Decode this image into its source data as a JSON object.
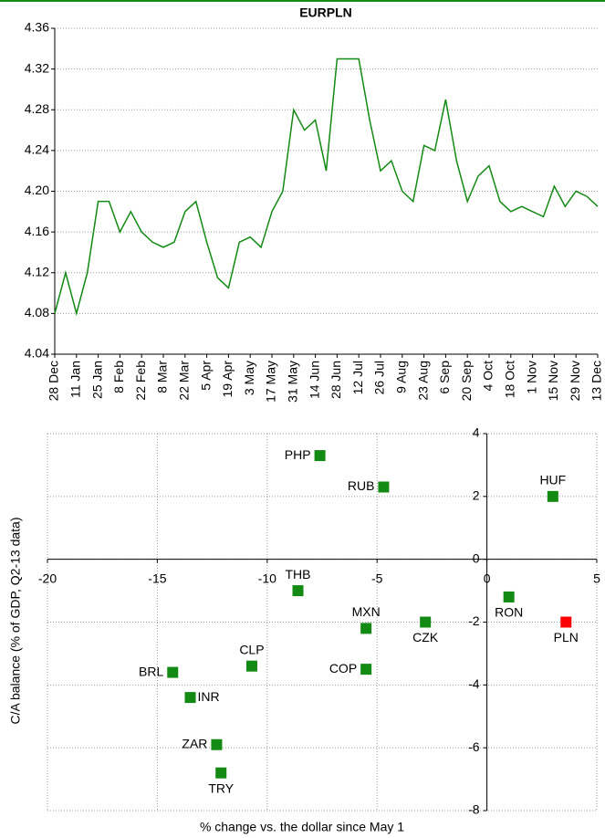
{
  "chart_data": [
    {
      "type": "line",
      "title": "EURPLN",
      "categories": [
        "28 Dec",
        null,
        "11 Jan",
        null,
        "25 Jan",
        null,
        "8 Feb",
        null,
        "22 Feb",
        null,
        "8 Mar",
        null,
        "22 Mar",
        null,
        "5 Apr",
        null,
        "19 Apr",
        null,
        "3 May",
        null,
        "17 May",
        null,
        "31 May",
        null,
        "14 Jun",
        null,
        "28 Jun",
        null,
        "12 Jul",
        null,
        "26 Jul",
        null,
        "9 Aug",
        null,
        "23 Aug",
        null,
        "6 Sep",
        null,
        "20 Sep",
        null,
        "4 Oct",
        null,
        "18 Oct",
        null,
        "1 Nov",
        null,
        "15 Nov",
        null,
        "29 Nov",
        null,
        "13 Dec"
      ],
      "series": [
        {
          "name": "EURPLN",
          "color": "#138a13",
          "values": [
            4.08,
            4.12,
            4.08,
            4.12,
            4.19,
            4.19,
            4.16,
            4.18,
            4.16,
            4.15,
            4.145,
            4.15,
            4.18,
            4.19,
            4.15,
            4.115,
            4.105,
            4.15,
            4.155,
            4.145,
            4.18,
            4.2,
            4.28,
            4.26,
            4.27,
            4.22,
            4.33,
            4.33,
            4.33,
            4.27,
            4.22,
            4.23,
            4.2,
            4.19,
            4.245,
            4.24,
            4.29,
            4.23,
            4.19,
            4.215,
            4.225,
            4.19,
            4.18,
            4.185,
            4.18,
            4.175,
            4.205,
            4.185,
            4.2,
            4.195,
            4.185
          ]
        }
      ],
      "ylim": [
        4.04,
        4.36
      ],
      "yticks": [
        4.04,
        4.08,
        4.12,
        4.16,
        {
          "value": 4.2,
          "label": "4.20"
        },
        4.24,
        4.28,
        4.32,
        4.36
      ],
      "grid": true
    },
    {
      "type": "scatter",
      "xlabel": "% change vs. the dollar since May 1",
      "ylabel": "C/A balance (% of GDP, Q2-13 data)",
      "labels": [
        "PHP",
        "RUB",
        "HUF",
        "THB",
        "RON",
        "MXN",
        "CZK",
        "PLN",
        "CLP",
        "COP",
        "BRL",
        "INR",
        "ZAR",
        "TRY"
      ],
      "x": [
        -7.6,
        -4.7,
        3,
        -8.6,
        1,
        -5.5,
        -2.8,
        3.6,
        -10.7,
        -5.5,
        -14.3,
        -13.5,
        -12.3,
        -12.1
      ],
      "values": [
        3.3,
        2.3,
        2,
        -1,
        -1.2,
        -2.2,
        -2,
        -2,
        -3.4,
        -3.5,
        -3.6,
        -4.4,
        -5.9,
        -6.8
      ],
      "colors": [
        "#138a13",
        "#138a13",
        "#138a13",
        "#138a13",
        "#138a13",
        "#138a13",
        "#138a13",
        "#ff0000",
        "#138a13",
        "#138a13",
        "#138a13",
        "#138a13",
        "#138a13",
        "#138a13"
      ],
      "xlim": [
        -20,
        5
      ],
      "xticks": [
        -20,
        -15,
        -10,
        -5,
        0,
        5
      ],
      "ylim": [
        -8,
        4
      ],
      "yticks": [
        -8,
        -6,
        -4,
        -2,
        0,
        2,
        4
      ],
      "grid": true
    }
  ]
}
